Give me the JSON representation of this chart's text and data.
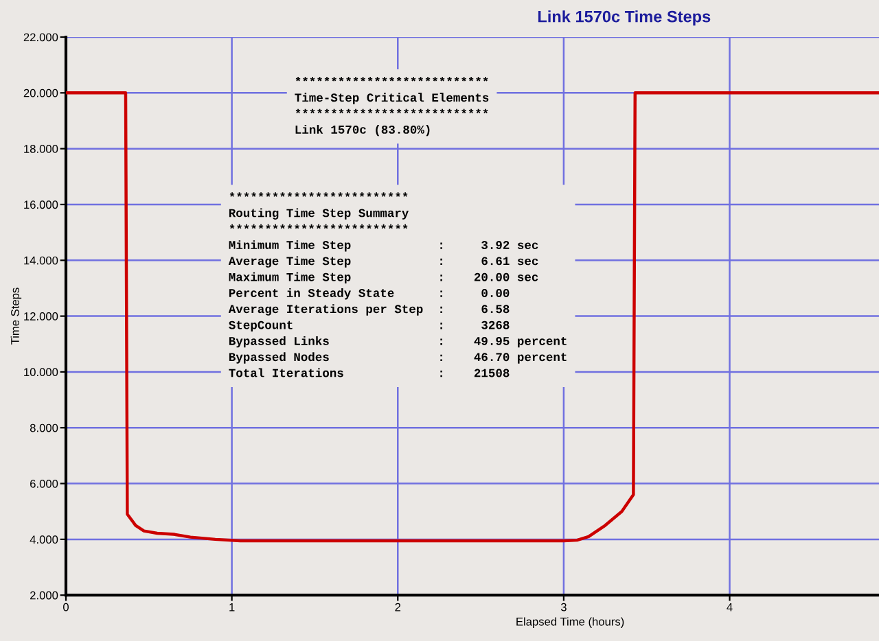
{
  "chart_data": {
    "type": "line",
    "title": "Link 1570c Time Steps",
    "xlabel": "Elapsed Time (hours)",
    "ylabel": "Time Steps",
    "x": [
      0,
      0.36,
      0.37,
      0.42,
      0.47,
      0.55,
      0.65,
      0.75,
      0.9,
      1.05,
      2.0,
      3.0,
      3.08,
      3.15,
      3.25,
      3.35,
      3.42,
      3.43,
      4.9
    ],
    "series": [
      {
        "color": "#cc0000",
        "values": [
          20,
          20,
          4.9,
          4.5,
          4.3,
          4.22,
          4.18,
          4.08,
          4.0,
          3.95,
          3.95,
          3.95,
          3.97,
          4.1,
          4.5,
          5.0,
          5.6,
          20,
          20
        ]
      }
    ],
    "xlim": [
      0,
      4.9
    ],
    "xticks": [
      0,
      1,
      2,
      3,
      4
    ],
    "ylim": [
      2,
      22
    ],
    "yticks": [
      {
        "value": 2,
        "label": "2.000"
      },
      {
        "value": 4,
        "label": "4.000"
      },
      {
        "value": 6,
        "label": "6.000"
      },
      {
        "value": 8,
        "label": "8.000"
      },
      {
        "value": 10,
        "label": "10.000"
      },
      {
        "value": 12,
        "label": "12.000"
      },
      {
        "value": 14,
        "label": "14.000"
      },
      {
        "value": 16,
        "label": "16.000"
      },
      {
        "value": 18,
        "label": "18.000"
      },
      {
        "value": 20,
        "label": "20.000"
      },
      {
        "value": 22,
        "label": "22.000"
      }
    ],
    "grid": true,
    "marker": "none",
    "line_style": "solid",
    "legend": false,
    "annotations": [
      "***************************\nTime-Step Critical Elements\n***************************\nLink 1570c (83.80%)",
      "*************************\nRouting Time Step Summary\n*************************\nMinimum Time Step            :     3.92 sec\nAverage Time Step            :     6.61 sec\nMaximum Time Step            :    20.00 sec\nPercent in Steady State      :     0.00\nAverage Iterations per Step  :     6.58\nStepCount                    :     3268\nBypassed Links               :    49.95 percent\nBypassed Nodes               :    46.70 percent\nTotal Iterations             :    21508"
    ]
  }
}
